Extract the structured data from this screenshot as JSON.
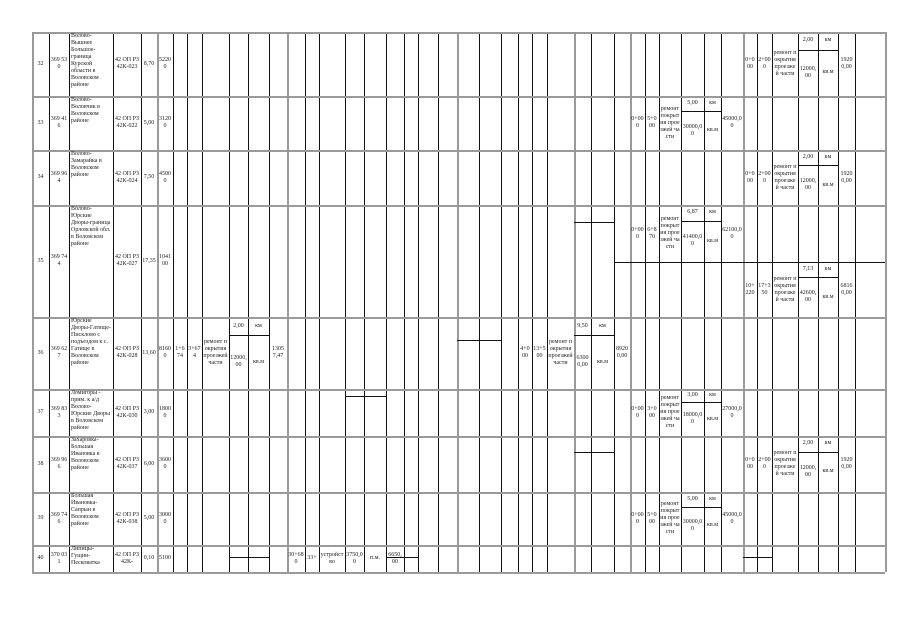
{
  "table": {
    "rows": [
      {
        "num": "32",
        "id": "369 530",
        "name": "Волово-Вышнее Большое-граница Курской области в Воловском районе",
        "code": "42 ОП РЗ 42К-023",
        "length": "8,70",
        "cost": "52200",
        "works": [
          {
            "start": "0+000",
            "end": "2+000",
            "type": "ремонт покрытия проезжей части",
            "km": "2,00",
            "area": "12000,00",
            "unit_km": "км",
            "unit_area": "кв.м",
            "total": "19200,00"
          }
        ]
      },
      {
        "num": "33",
        "id": "369 416",
        "name": "Волово-Воловчик в Воловском районе",
        "code": "42 ОП РЗ 42К-022",
        "length": "5,00",
        "cost": "31200",
        "works": [
          {
            "start": "0+000",
            "end": "5+000",
            "type": "ремонт покрытия проезжей части",
            "km": "5,00",
            "area": "30000,00",
            "unit_km": "км",
            "unit_area": "кв.м",
            "total": "45000,00"
          }
        ]
      },
      {
        "num": "34",
        "id": "369 964",
        "name": "Волово-Замарайка в Воловском районе",
        "code": "42 ОП РЗ 42К-024",
        "length": "7,50",
        "cost": "45000",
        "works": [
          {
            "start": "0+000",
            "end": "2+000",
            "type": "ремонт покрытия проезжей части",
            "km": "2,00",
            "area": "12000,00",
            "unit_km": "км",
            "unit_area": "кв.м",
            "total": "19200,00"
          }
        ]
      },
      {
        "num": "35",
        "id": "369 744",
        "name": "Волово-Юрские Дворы-граница Орловской обл. в Воловском районе",
        "code": "42 ОП РЗ 42К-027",
        "length": "17,35",
        "cost": "104100",
        "works": [
          {
            "start": "0+000",
            "end": "6+870",
            "type": "ремонт покрытия проезжей части",
            "km": "6,87",
            "area": "41400,00",
            "unit_km": "км",
            "unit_area": "кв.м",
            "total": "62100,00"
          },
          {
            "start": "10+220",
            "end": "17+350",
            "type": "ремонт покрытия проезжей части",
            "km": "7,13",
            "area": "42600,00",
            "unit_km": "км",
            "unit_area": "кв.м",
            "total": "68160,00"
          }
        ]
      },
      {
        "num": "36",
        "id": "369 627",
        "name": "Юрские Дворы-Гатище-Писклово с подъездом к с. Гатище в Воловском районе",
        "code": "42 ОП РЗ 42К-028",
        "length": "13,60",
        "cost": "81600",
        "works": [
          {
            "start": "1+674",
            "end": "3+674",
            "type": "ремонт покрытия проезжей части",
            "km": "2,00",
            "area": "12000,00",
            "unit_km": "км",
            "unit_area": "кв.м",
            "total": "13057,47"
          },
          {
            "start": "4+000",
            "end": "13+500",
            "type": "ремонт покрытия проезжей части",
            "km": "9,50",
            "area": "63000,00",
            "unit_km": "км",
            "unit_area": "кв.м",
            "total": "89200,00"
          }
        ]
      },
      {
        "num": "37",
        "id": "369 833",
        "name": "Ломигоры - прим. к а/д Волово-Юрские Дворы в Воловском районе",
        "code": "42 ОП РЗ 42К-030",
        "length": "3,00",
        "cost": "18000",
        "works": [
          {
            "start": "0+000",
            "end": "3+000",
            "type": "ремонт покрытия проезжей части",
            "km": "3,00",
            "area": "18000,00",
            "unit_km": "км",
            "unit_area": "кв.м",
            "total": "27000,00"
          }
        ]
      },
      {
        "num": "38",
        "id": "369 966",
        "name": "Захаровка-Большая Ивановка в Воловском районе",
        "code": "42 ОП РЗ 42К-037",
        "length": "6,00",
        "cost": "36000",
        "works": [
          {
            "start": "0+000",
            "end": "2+000",
            "type": "ремонт покрытия проезжей части",
            "km": "2,00",
            "area": "12000,00",
            "unit_km": "км",
            "unit_area": "кв.м",
            "total": "19200,00"
          }
        ]
      },
      {
        "num": "39",
        "id": "369 746",
        "name": "Большая Ивановка-Сапрын в Воловском районе",
        "code": "42 ОП РЗ 42К-038",
        "length": "5,00",
        "cost": "30000",
        "works": [
          {
            "start": "0+000",
            "end": "5+000",
            "type": "ремонт покрытия проезжей части",
            "km": "5,00",
            "area": "30000,00",
            "unit_km": "км",
            "unit_area": "кв.м",
            "total": "45000,00"
          }
        ]
      },
      {
        "num": "40",
        "id": "370 031",
        "name": "Липицы-Гущин-Песковатка",
        "code": "42 ОП РЗ 42К-",
        "length": "0,10",
        "cost": "5100",
        "works": [
          {
            "start": "30+680",
            "end": "33+",
            "type": "устройство",
            "km": "3750,00",
            "area": "",
            "unit_km": "п.м.",
            "unit_area": "",
            "total": "6650,00"
          }
        ]
      }
    ]
  }
}
